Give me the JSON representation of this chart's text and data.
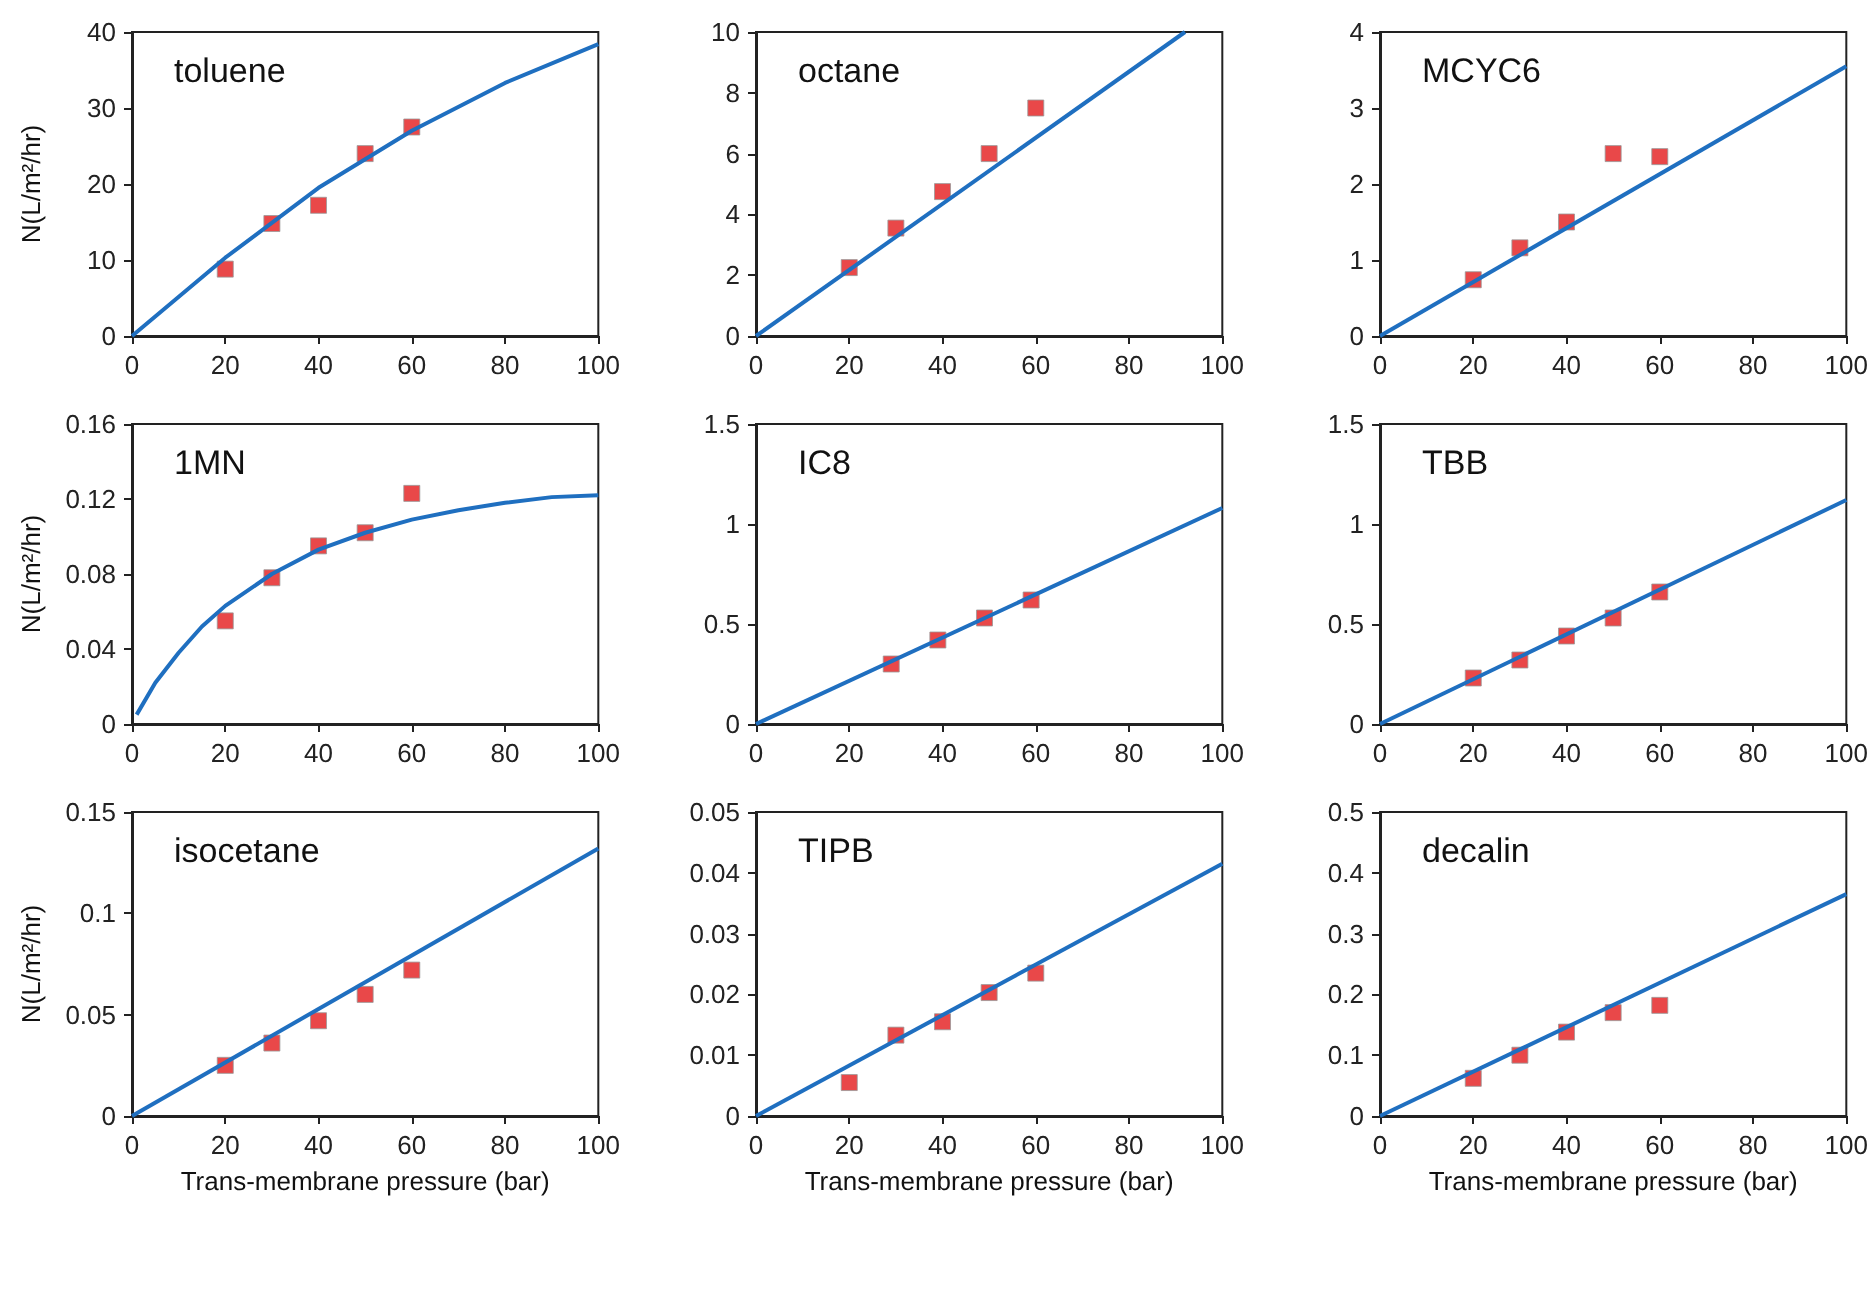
{
  "chart_data": [
    {
      "type": "scatter",
      "title": "toluene",
      "ylabel": "N(L/m²/hr)",
      "xlim": [
        0,
        100
      ],
      "xticks": [
        0,
        20,
        40,
        60,
        80,
        100
      ],
      "ylim": [
        0,
        40
      ],
      "yticks": [
        0,
        10,
        20,
        30,
        40
      ],
      "series": [
        {
          "type": "scatter",
          "marker": "square",
          "color": "#e41a1c",
          "x": [
            20,
            30,
            40,
            50,
            60
          ],
          "values": [
            8.8,
            14.8,
            17.2,
            24,
            27.5
          ]
        },
        {
          "type": "line",
          "marker": "none",
          "line_style": "solid",
          "color": "#1f6fc0",
          "x": [
            0,
            20,
            40,
            60,
            80,
            100
          ],
          "values": [
            0,
            10.3,
            19.5,
            27,
            33.3,
            38.4
          ]
        }
      ]
    },
    {
      "type": "scatter",
      "title": "octane",
      "xlim": [
        0,
        100
      ],
      "xticks": [
        0,
        20,
        40,
        60,
        80,
        100
      ],
      "ylim": [
        0,
        10
      ],
      "yticks": [
        0,
        2,
        4,
        6,
        8,
        10
      ],
      "series": [
        {
          "type": "scatter",
          "marker": "square",
          "color": "#e41a1c",
          "x": [
            20,
            30,
            40,
            50,
            60
          ],
          "values": [
            2.25,
            3.55,
            4.75,
            6,
            7.5
          ]
        },
        {
          "type": "line",
          "marker": "none",
          "line_style": "solid",
          "color": "#1f6fc0",
          "x": [
            0,
            92
          ],
          "values": [
            0,
            10
          ]
        }
      ]
    },
    {
      "type": "scatter",
      "title": "MCYC6",
      "xlim": [
        0,
        100
      ],
      "xticks": [
        0,
        20,
        40,
        60,
        80,
        100
      ],
      "ylim": [
        0,
        4
      ],
      "yticks": [
        0,
        1,
        2,
        3,
        4
      ],
      "series": [
        {
          "type": "scatter",
          "marker": "square",
          "color": "#e41a1c",
          "x": [
            20,
            30,
            40,
            50,
            60
          ],
          "values": [
            0.74,
            1.16,
            1.5,
            2.4,
            2.36
          ]
        },
        {
          "type": "line",
          "marker": "none",
          "line_style": "solid",
          "color": "#1f6fc0",
          "x": [
            0,
            100
          ],
          "values": [
            0,
            3.55
          ]
        }
      ]
    },
    {
      "type": "scatter",
      "title": "1MN",
      "ylabel": "N(L/m²/hr)",
      "xlim": [
        0,
        100
      ],
      "xticks": [
        0,
        20,
        40,
        60,
        80,
        100
      ],
      "ylim": [
        0,
        0.16
      ],
      "yticks": [
        0,
        0.04,
        0.08,
        0.12,
        0.16
      ],
      "series": [
        {
          "type": "scatter",
          "marker": "square",
          "color": "#e41a1c",
          "x": [
            20,
            30,
            40,
            50,
            60
          ],
          "values": [
            0.055,
            0.078,
            0.095,
            0.102,
            0.123
          ]
        },
        {
          "type": "line",
          "marker": "none",
          "line_style": "solid",
          "color": "#1f6fc0",
          "x": [
            1,
            5,
            10,
            15,
            20,
            30,
            40,
            50,
            60,
            70,
            80,
            90,
            100
          ],
          "values": [
            0.005,
            0.022,
            0.038,
            0.052,
            0.063,
            0.08,
            0.093,
            0.102,
            0.109,
            0.114,
            0.118,
            0.121,
            0.122
          ]
        }
      ]
    },
    {
      "type": "scatter",
      "title": "IC8",
      "xlim": [
        0,
        100
      ],
      "xticks": [
        0,
        20,
        40,
        60,
        80,
        100
      ],
      "ylim": [
        0,
        1.5
      ],
      "yticks": [
        0,
        0.5,
        1,
        1.5
      ],
      "series": [
        {
          "type": "scatter",
          "marker": "square",
          "color": "#e41a1c",
          "x": [
            29,
            39,
            49,
            59
          ],
          "values": [
            0.3,
            0.42,
            0.53,
            0.62
          ]
        },
        {
          "type": "line",
          "marker": "none",
          "line_style": "solid",
          "color": "#1f6fc0",
          "x": [
            0,
            100
          ],
          "values": [
            0,
            1.08
          ]
        }
      ]
    },
    {
      "type": "scatter",
      "title": "TBB",
      "xlim": [
        0,
        100
      ],
      "xticks": [
        0,
        20,
        40,
        60,
        80,
        100
      ],
      "ylim": [
        0,
        1.5
      ],
      "yticks": [
        0,
        0.5,
        1,
        1.5
      ],
      "series": [
        {
          "type": "scatter",
          "marker": "square",
          "color": "#e41a1c",
          "x": [
            20,
            30,
            40,
            50,
            60
          ],
          "values": [
            0.23,
            0.32,
            0.44,
            0.53,
            0.66
          ]
        },
        {
          "type": "line",
          "marker": "none",
          "line_style": "solid",
          "color": "#1f6fc0",
          "x": [
            0,
            100
          ],
          "values": [
            0,
            1.12
          ]
        }
      ]
    },
    {
      "type": "scatter",
      "title": "isocetane",
      "ylabel": "N(L/m²/hr)",
      "xlabel": "Trans-membrane pressure (bar)",
      "xlim": [
        0,
        100
      ],
      "xticks": [
        0,
        20,
        40,
        60,
        80,
        100
      ],
      "ylim": [
        0,
        0.15
      ],
      "yticks": [
        0,
        0.05,
        0.1,
        0.15
      ],
      "series": [
        {
          "type": "scatter",
          "marker": "square",
          "color": "#e41a1c",
          "x": [
            20,
            30,
            40,
            50,
            60
          ],
          "values": [
            0.025,
            0.036,
            0.047,
            0.06,
            0.072
          ]
        },
        {
          "type": "line",
          "marker": "none",
          "line_style": "solid",
          "color": "#1f6fc0",
          "x": [
            0,
            100
          ],
          "values": [
            0,
            0.132
          ]
        }
      ]
    },
    {
      "type": "scatter",
      "title": "TIPB",
      "xlabel": "Trans-membrane pressure (bar)",
      "xlim": [
        0,
        100
      ],
      "xticks": [
        0,
        20,
        40,
        60,
        80,
        100
      ],
      "ylim": [
        0,
        0.05
      ],
      "yticks": [
        0,
        0.01,
        0.02,
        0.03,
        0.04,
        0.05
      ],
      "series": [
        {
          "type": "scatter",
          "marker": "square",
          "color": "#e41a1c",
          "x": [
            20,
            30,
            40,
            50,
            60
          ],
          "values": [
            0.0055,
            0.0133,
            0.0155,
            0.0203,
            0.0235
          ]
        },
        {
          "type": "line",
          "marker": "none",
          "line_style": "solid",
          "color": "#1f6fc0",
          "x": [
            0,
            100
          ],
          "values": [
            0,
            0.0415
          ]
        }
      ]
    },
    {
      "type": "scatter",
      "title": "decalin",
      "xlabel": "Trans-membrane pressure (bar)",
      "xlim": [
        0,
        100
      ],
      "xticks": [
        0,
        20,
        40,
        60,
        80,
        100
      ],
      "ylim": [
        0,
        0.5
      ],
      "yticks": [
        0,
        0.1,
        0.2,
        0.3,
        0.4,
        0.5
      ],
      "series": [
        {
          "type": "scatter",
          "marker": "square",
          "color": "#e41a1c",
          "x": [
            20,
            30,
            40,
            50,
            60
          ],
          "values": [
            0.062,
            0.1,
            0.138,
            0.17,
            0.182
          ]
        },
        {
          "type": "line",
          "marker": "none",
          "line_style": "solid",
          "color": "#1f6fc0",
          "x": [
            0,
            100
          ],
          "values": [
            0,
            0.365
          ]
        }
      ]
    }
  ]
}
